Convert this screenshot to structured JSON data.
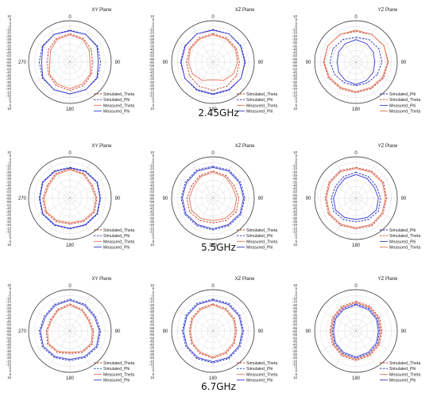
{
  "colors": {
    "sim_theta": "#c0392b",
    "sim_phi": "#1f2fbf",
    "meas_theta": "#e8704f",
    "meas_phi": "#3a3ad0",
    "grid": "#9a9a9a",
    "outer_ring": "#222222"
  },
  "rows": [
    {
      "freq_label": "2.45GHz"
    },
    {
      "freq_label": "5.5GHz"
    },
    {
      "freq_label": "6.7GHz"
    }
  ],
  "chart_data": [
    {
      "type": "polar",
      "plane": "XY Plane",
      "frequency": "2.45GHz",
      "r_range": [
        -60,
        10
      ],
      "r_ticks": [
        "10",
        "5",
        "0",
        "-5",
        "-10",
        "-15",
        "-20",
        "-25",
        "-30",
        "-35",
        "-40",
        "-45",
        "-50",
        "-55",
        "-60",
        "-55",
        "-50",
        "-45",
        "-40",
        "-35",
        "-30",
        "-25",
        "-20",
        "-15",
        "-10",
        "-5",
        "0",
        "5",
        "10"
      ],
      "angle_labels": [
        "0",
        "90",
        "180",
        "270"
      ],
      "angles_deg": [
        0,
        30,
        60,
        90,
        120,
        150,
        180,
        210,
        240,
        270,
        300,
        330
      ],
      "series": [
        {
          "name": "Simulated_Theta",
          "style": "dash",
          "values": [
            -12,
            -14,
            -18,
            -22,
            -18,
            -14,
            -12,
            -14,
            -18,
            -22,
            -18,
            -14
          ]
        },
        {
          "name": "Simulated_Phi",
          "style": "dash",
          "values": [
            -6,
            -6,
            -6,
            -8,
            -6,
            -6,
            -6,
            -6,
            -6,
            -8,
            -6,
            -6
          ]
        },
        {
          "name": "Measured_Theta",
          "style": "solid",
          "values": [
            -14,
            -16,
            -22,
            -26,
            -20,
            -17,
            -15,
            -17,
            -20,
            -26,
            -22,
            -16
          ]
        },
        {
          "name": "Measured_Phi",
          "style": "solid",
          "values": [
            -7,
            -6,
            -7,
            -12,
            -7,
            -6,
            -6,
            -6,
            -7,
            -12,
            -7,
            -6
          ]
        }
      ]
    },
    {
      "type": "polar",
      "plane": "XZ Plane",
      "frequency": "2.45GHz",
      "r_range": [
        -60,
        10
      ],
      "r_ticks": [
        "10",
        "5",
        "0",
        "-5",
        "-10",
        "-15",
        "-20",
        "-25",
        "-30",
        "-35",
        "-40",
        "-45",
        "-50",
        "-55",
        "-60",
        "-55",
        "-50",
        "-45",
        "-40",
        "-35",
        "-30",
        "-25",
        "-20",
        "-15",
        "-10",
        "-5",
        "0",
        "5",
        "10"
      ],
      "angle_labels": [
        "0",
        "90",
        "180",
        "90"
      ],
      "angles_deg": [
        0,
        30,
        60,
        90,
        120,
        150,
        180,
        210,
        240,
        270,
        300,
        330
      ],
      "series": [
        {
          "name": "Simulated_Theta",
          "style": "dash",
          "values": [
            -12,
            -13,
            -14,
            -15,
            -14,
            -13,
            -12,
            -13,
            -14,
            -15,
            -14,
            -13
          ]
        },
        {
          "name": "Simulated_Phi",
          "style": "dash",
          "values": [
            -5,
            -5,
            -5,
            -5,
            -5,
            -5,
            -5,
            -5,
            -5,
            -5,
            -5,
            -5
          ]
        },
        {
          "name": "Measured_Theta",
          "style": "solid",
          "values": [
            -14,
            -15,
            -16,
            -18,
            -20,
            -24,
            -30,
            -24,
            -20,
            -18,
            -16,
            -15
          ]
        },
        {
          "name": "Measured_Phi",
          "style": "solid",
          "values": [
            -6,
            -5,
            -6,
            -6,
            -5,
            -6,
            -6,
            -6,
            -5,
            -6,
            -6,
            -5
          ]
        }
      ]
    },
    {
      "type": "polar",
      "plane": "YZ Plane",
      "frequency": "2.45GHz",
      "r_range": [
        -60,
        10
      ],
      "r_ticks": [
        "10",
        "5",
        "0",
        "-5",
        "-10",
        "-15",
        "-20",
        "-25",
        "-30",
        "-35",
        "-40",
        "-45",
        "-50",
        "-55",
        "-60",
        "-55",
        "-50",
        "-45",
        "-40",
        "-35",
        "-30",
        "-25",
        "-20",
        "-15",
        "-10",
        "-5",
        "0",
        "5",
        "10"
      ],
      "angle_labels": [
        "0",
        "90",
        "180",
        "90"
      ],
      "angles_deg": [
        0,
        30,
        60,
        90,
        120,
        150,
        180,
        210,
        240,
        270,
        300,
        330
      ],
      "series": [
        {
          "name": "Simulated_Phi",
          "style": "dash",
          "values": [
            -18,
            -16,
            -15,
            -16,
            -18,
            -20,
            -20,
            -20,
            -18,
            -16,
            -15,
            -16
          ]
        },
        {
          "name": "Simulated_Theta",
          "style": "dash",
          "values": [
            -8,
            -6,
            -5,
            -5,
            -6,
            -8,
            -8,
            -8,
            -6,
            -5,
            -5,
            -6
          ]
        },
        {
          "name": "Measured_Phi",
          "style": "solid",
          "values": [
            -22,
            -24,
            -26,
            -28,
            -26,
            -24,
            -22,
            -24,
            -26,
            -28,
            -26,
            -24
          ]
        },
        {
          "name": "Measured_Theta",
          "style": "solid",
          "values": [
            -6,
            -6,
            -5,
            -6,
            -8,
            -10,
            -10,
            -10,
            -8,
            -6,
            -5,
            -6
          ]
        }
      ]
    },
    {
      "type": "polar",
      "plane": "XY Plane",
      "frequency": "5.5GHz",
      "r_range": [
        -60,
        10
      ],
      "r_ticks": [
        "10",
        "5",
        "0",
        "-5",
        "-10",
        "-15",
        "-20",
        "-25",
        "-30",
        "-35",
        "-40",
        "-45",
        "-50",
        "-55",
        "-60",
        "-55",
        "-50",
        "-45",
        "-40",
        "-35",
        "-30",
        "-25",
        "-20",
        "-15",
        "-10",
        "-5",
        "0",
        "5",
        "10"
      ],
      "angle_labels": [
        "0",
        "90",
        "180",
        "270"
      ],
      "angles_deg": [
        0,
        30,
        60,
        90,
        120,
        150,
        180,
        210,
        240,
        270,
        300,
        330
      ],
      "series": [
        {
          "name": "Simulated_Theta",
          "style": "dash",
          "values": [
            -10,
            -12,
            -16,
            -14,
            -12,
            -14,
            -16,
            -14,
            -12,
            -14,
            -16,
            -12
          ]
        },
        {
          "name": "Simulated_Phi",
          "style": "dash",
          "values": [
            -8,
            -7,
            -6,
            -8,
            -6,
            -7,
            -8,
            -7,
            -6,
            -8,
            -6,
            -7
          ]
        },
        {
          "name": "Measured_Theta",
          "style": "solid",
          "values": [
            -12,
            -14,
            -18,
            -16,
            -14,
            -16,
            -18,
            -16,
            -14,
            -16,
            -18,
            -14
          ]
        },
        {
          "name": "Measured_Phi",
          "style": "solid",
          "values": [
            -9,
            -8,
            -7,
            -9,
            -7,
            -8,
            -9,
            -8,
            -7,
            -9,
            -7,
            -8
          ]
        }
      ]
    },
    {
      "type": "polar",
      "plane": "XZ Plane",
      "frequency": "5.5GHz",
      "r_range": [
        -60,
        10
      ],
      "r_ticks": [
        "10",
        "5",
        "0",
        "-5",
        "-10",
        "-15",
        "-20",
        "-25",
        "-30",
        "-35",
        "-40",
        "-45",
        "-50",
        "-55",
        "-60",
        "-55",
        "-50",
        "-45",
        "-40",
        "-35",
        "-30",
        "-25",
        "-20",
        "-15",
        "-10",
        "-5",
        "0",
        "5",
        "10"
      ],
      "angle_labels": [
        "0",
        "90",
        "180",
        "90"
      ],
      "angles_deg": [
        0,
        30,
        60,
        90,
        120,
        150,
        180,
        210,
        240,
        270,
        300,
        330
      ],
      "series": [
        {
          "name": "Simulated_Theta",
          "style": "dash",
          "values": [
            -14,
            -16,
            -18,
            -16,
            -14,
            -16,
            -18,
            -16,
            -14,
            -16,
            -18,
            -16
          ]
        },
        {
          "name": "Simulated_Phi",
          "style": "dash",
          "values": [
            -6,
            -5,
            -6,
            -6,
            -5,
            -6,
            -6,
            -6,
            -5,
            -6,
            -6,
            -5
          ]
        },
        {
          "name": "Measured_Theta",
          "style": "solid",
          "values": [
            -16,
            -18,
            -22,
            -20,
            -18,
            -20,
            -22,
            -20,
            -18,
            -20,
            -22,
            -18
          ]
        },
        {
          "name": "Measured_Phi",
          "style": "solid",
          "values": [
            -8,
            -7,
            -8,
            -8,
            -7,
            -8,
            -8,
            -8,
            -7,
            -8,
            -8,
            -7
          ]
        }
      ]
    },
    {
      "type": "polar",
      "plane": "YZ Plane",
      "frequency": "5.5GHz",
      "r_range": [
        -60,
        10
      ],
      "r_ticks": [
        "10",
        "5",
        "0",
        "-5",
        "-10",
        "-15",
        "-20",
        "-25",
        "-30",
        "-35",
        "-40",
        "-45",
        "-50",
        "-55",
        "-60",
        "-55",
        "-50",
        "-45",
        "-40",
        "-35",
        "-30",
        "-25",
        "-20",
        "-15",
        "-10",
        "-5",
        "0",
        "5",
        "10"
      ],
      "angle_labels": [
        "0",
        "90",
        "180",
        "90"
      ],
      "angles_deg": [
        0,
        30,
        60,
        90,
        120,
        150,
        180,
        210,
        240,
        270,
        300,
        330
      ],
      "series": [
        {
          "name": "Simulated_Phi",
          "style": "dash",
          "values": [
            -16,
            -18,
            -20,
            -18,
            -16,
            -18,
            -20,
            -18,
            -16,
            -18,
            -20,
            -18
          ]
        },
        {
          "name": "Simulated_Theta",
          "style": "dash",
          "values": [
            -8,
            -7,
            -6,
            -8,
            -7,
            -6,
            -8,
            -7,
            -6,
            -8,
            -7,
            -6
          ]
        },
        {
          "name": "Measured_Phi",
          "style": "solid",
          "values": [
            -20,
            -22,
            -24,
            -22,
            -20,
            -22,
            -24,
            -22,
            -20,
            -22,
            -24,
            -22
          ]
        },
        {
          "name": "Measured_Theta",
          "style": "solid",
          "values": [
            -10,
            -9,
            -8,
            -10,
            -9,
            -8,
            -10,
            -9,
            -8,
            -10,
            -9,
            -8
          ]
        }
      ]
    },
    {
      "type": "polar",
      "plane": "XY Plane",
      "frequency": "6.7GHz",
      "r_range": [
        -60,
        10
      ],
      "r_ticks": [
        "10",
        "5",
        "0",
        "-5",
        "-10",
        "-15",
        "-20",
        "-25",
        "-30",
        "-35",
        "-40",
        "-45",
        "-50",
        "-55",
        "-60",
        "-55",
        "-50",
        "-45",
        "-40",
        "-35",
        "-30",
        "-25",
        "-20",
        "-15",
        "-10",
        "-5",
        "0",
        "5",
        "10"
      ],
      "angle_labels": [
        "0",
        "90",
        "180",
        "270"
      ],
      "angles_deg": [
        0,
        30,
        60,
        90,
        120,
        150,
        180,
        210,
        240,
        270,
        300,
        330
      ],
      "series": [
        {
          "name": "Simulated_Theta",
          "style": "dash",
          "values": [
            -14,
            -18,
            -22,
            -20,
            -16,
            -18,
            -22,
            -18,
            -16,
            -20,
            -22,
            -18
          ]
        },
        {
          "name": "Simulated_Phi",
          "style": "dash",
          "values": [
            -6,
            -8,
            -10,
            -8,
            -6,
            -8,
            -10,
            -8,
            -6,
            -8,
            -10,
            -8
          ]
        },
        {
          "name": "Measured_Theta",
          "style": "solid",
          "values": [
            -16,
            -20,
            -24,
            -22,
            -18,
            -20,
            -24,
            -20,
            -18,
            -22,
            -24,
            -20
          ]
        },
        {
          "name": "Measured_Phi",
          "style": "solid",
          "values": [
            -8,
            -10,
            -12,
            -10,
            -8,
            -10,
            -12,
            -10,
            -8,
            -10,
            -12,
            -10
          ]
        }
      ]
    },
    {
      "type": "polar",
      "plane": "XZ Plane",
      "frequency": "6.7GHz",
      "r_range": [
        -60,
        10
      ],
      "r_ticks": [
        "10",
        "5",
        "0",
        "-5",
        "-10",
        "-15",
        "-20",
        "-25",
        "-30",
        "-35",
        "-40",
        "-45",
        "-50",
        "-55",
        "-60",
        "-55",
        "-50",
        "-45",
        "-40",
        "-35",
        "-30",
        "-25",
        "-20",
        "-15",
        "-10",
        "-5",
        "0",
        "5",
        "10"
      ],
      "angle_labels": [
        "0",
        "90",
        "180",
        "90"
      ],
      "angles_deg": [
        0,
        30,
        60,
        90,
        120,
        150,
        180,
        210,
        240,
        270,
        300,
        330
      ],
      "series": [
        {
          "name": "Simulated_Theta",
          "style": "dash",
          "values": [
            -14,
            -16,
            -18,
            -20,
            -18,
            -16,
            -14,
            -16,
            -18,
            -20,
            -18,
            -16
          ]
        },
        {
          "name": "Simulated_Phi",
          "style": "dash",
          "values": [
            -6,
            -6,
            -7,
            -8,
            -7,
            -6,
            -6,
            -6,
            -7,
            -8,
            -7,
            -6
          ]
        },
        {
          "name": "Measured_Theta",
          "style": "solid",
          "values": [
            -16,
            -18,
            -20,
            -22,
            -20,
            -18,
            -16,
            -18,
            -20,
            -22,
            -20,
            -18
          ]
        },
        {
          "name": "Measured_Phi",
          "style": "solid",
          "values": [
            -8,
            -8,
            -9,
            -10,
            -9,
            -8,
            -8,
            -8,
            -9,
            -10,
            -9,
            -8
          ]
        }
      ]
    },
    {
      "type": "polar",
      "plane": "YZ Plane",
      "frequency": "6.7GHz",
      "r_range": [
        -60,
        10
      ],
      "r_ticks": [
        "10",
        "5",
        "0",
        "-5",
        "-10",
        "-15",
        "-20",
        "-25",
        "-30",
        "-35",
        "-40",
        "-45",
        "-50",
        "-55",
        "-60",
        "-55",
        "-50",
        "-45",
        "-40",
        "-35",
        "-30",
        "-25",
        "-20",
        "-15",
        "-10",
        "-5",
        "0",
        "5",
        "10"
      ],
      "angle_labels": [
        "0",
        "90",
        "180",
        "90"
      ],
      "angles_deg": [
        0,
        30,
        60,
        90,
        120,
        150,
        180,
        210,
        240,
        270,
        300,
        330
      ],
      "series": [
        {
          "name": "Simulated_Theta",
          "style": "dash",
          "values": [
            -10,
            -12,
            -14,
            -16,
            -14,
            -12,
            -10,
            -12,
            -14,
            -16,
            -14,
            -12
          ]
        },
        {
          "name": "Simulated_Phi",
          "style": "dash",
          "values": [
            -14,
            -16,
            -18,
            -20,
            -18,
            -16,
            -14,
            -16,
            -18,
            -20,
            -18,
            -16
          ]
        },
        {
          "name": "Measured_Theta",
          "style": "solid",
          "values": [
            -12,
            -14,
            -16,
            -18,
            -16,
            -14,
            -12,
            -14,
            -16,
            -18,
            -16,
            -14
          ]
        },
        {
          "name": "Measured_Phi",
          "style": "solid",
          "values": [
            -16,
            -18,
            -20,
            -22,
            -20,
            -18,
            -16,
            -18,
            -20,
            -22,
            -20,
            -18
          ]
        }
      ]
    }
  ]
}
